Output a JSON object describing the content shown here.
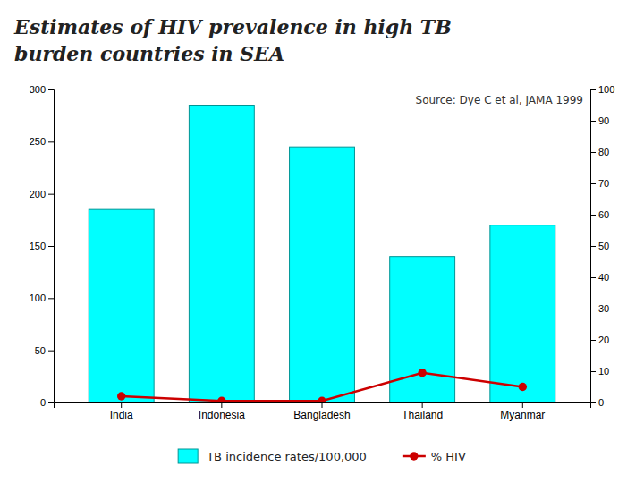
{
  "chart_data": {
    "type": "bar",
    "title": [
      "Estimates of HIV prevalence in high TB",
      "burden countries in SEA"
    ],
    "annotations": [
      "Source: Dye C et al, JAMA 1999"
    ],
    "categories": [
      "India",
      "Indonesia",
      "Bangladesh",
      "Thailand",
      "Myanmar"
    ],
    "series": [
      {
        "name": "TB incidence rates/100,000",
        "type": "bar",
        "color": "#00FFFF",
        "values": [
          185,
          285,
          245,
          140,
          170
        ]
      },
      {
        "name": "% HIV",
        "type": "line",
        "axis": "y2",
        "color": "#CC0000",
        "marker": "circle",
        "line_style": "solid",
        "values": [
          2.0,
          0.5,
          0.5,
          9.5,
          5.0
        ]
      }
    ],
    "ylim": [
      0,
      300
    ],
    "yticks": [
      0,
      50,
      100,
      150,
      200,
      250,
      300
    ],
    "y2lim": [
      0,
      100
    ],
    "y2ticks": [
      0,
      10,
      20,
      30,
      40,
      50,
      60,
      70,
      80,
      90,
      100
    ],
    "grid": false,
    "legend": "bottom"
  }
}
